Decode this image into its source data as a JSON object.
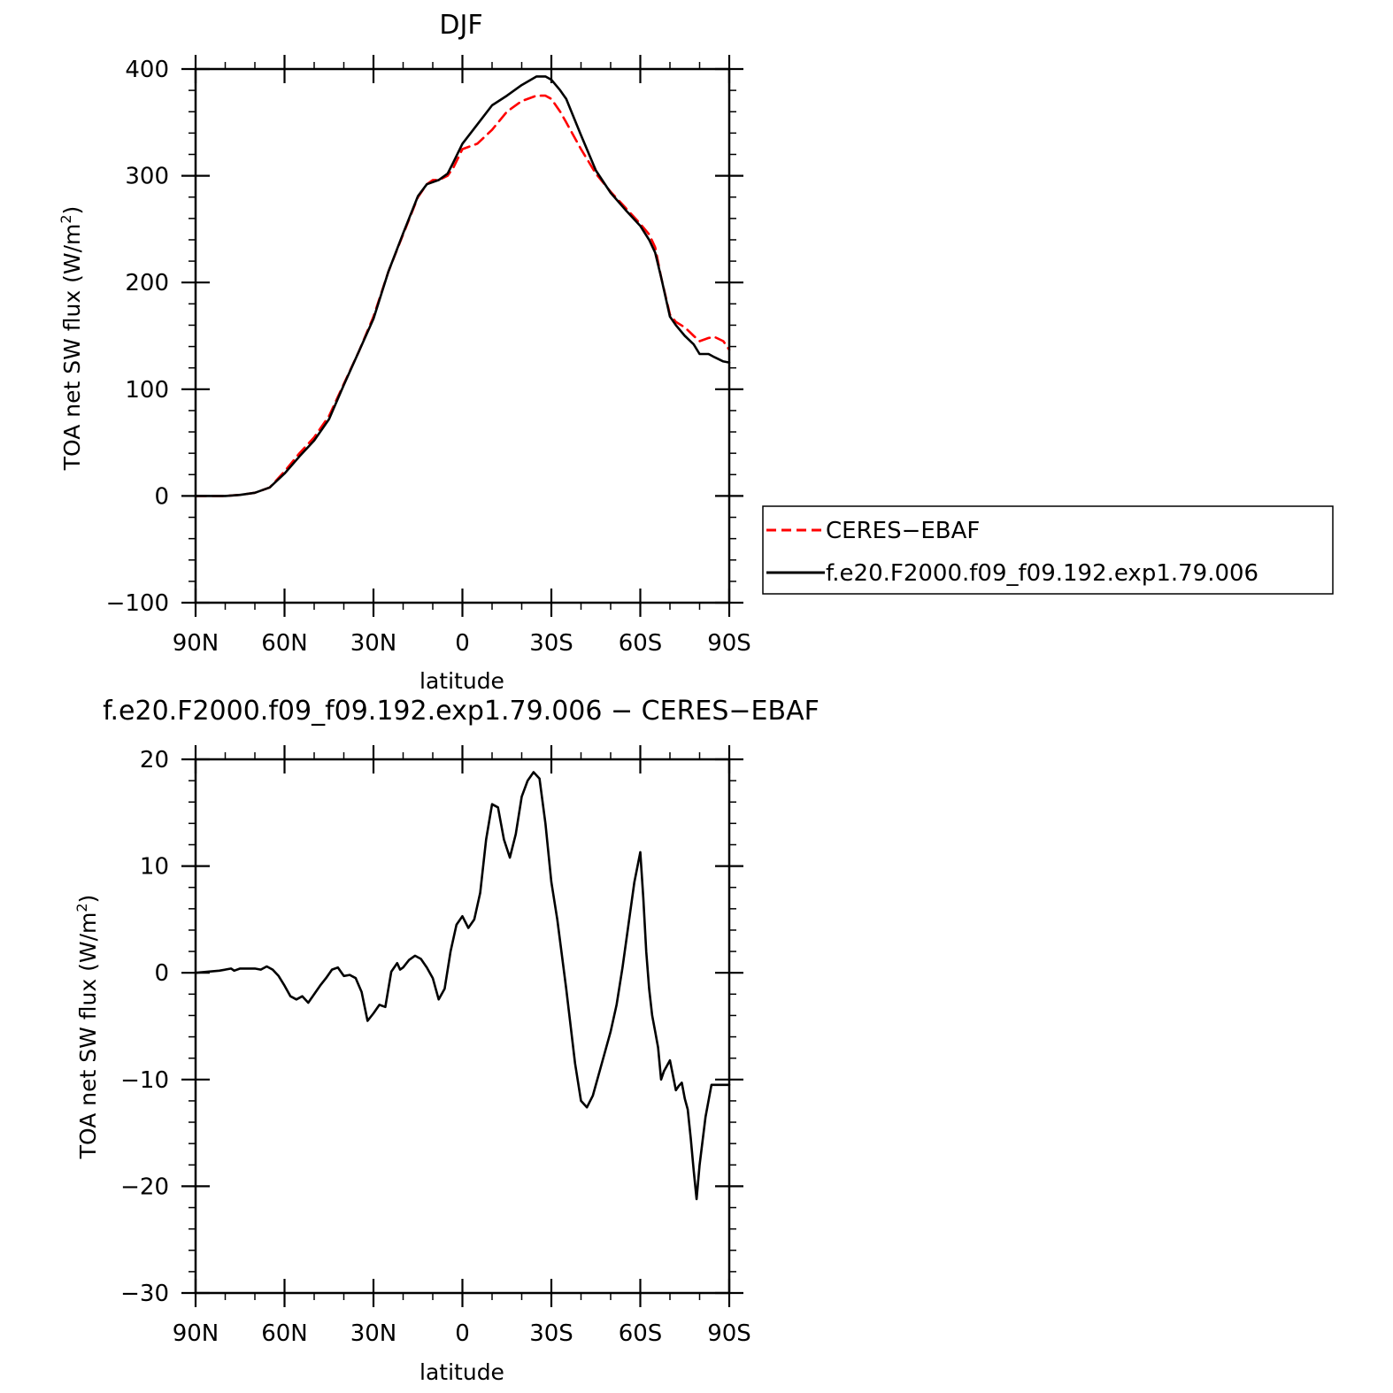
{
  "chart_data": [
    {
      "type": "line",
      "title": "DJF",
      "xlabel": "latitude",
      "ylabel_main": "TOA net SW flux (W/m",
      "ylabel_sup": "2",
      "ylabel_close": ")",
      "xlim": [
        -90,
        90
      ],
      "ylim": [
        -100,
        400
      ],
      "x_ticks": [
        -90,
        -60,
        -30,
        0,
        30,
        60,
        90
      ],
      "x_tick_labels": [
        "90N",
        "60N",
        "30N",
        "0",
        "30S",
        "60S",
        "90S"
      ],
      "y_ticks": [
        -100,
        0,
        100,
        200,
        300,
        400
      ],
      "y_tick_labels": [
        "−100",
        "0",
        "100",
        "200",
        "300",
        "400"
      ],
      "grid": false,
      "legend_position": "right",
      "series": [
        {
          "name": "CERES−EBAF",
          "color": "#ff0000",
          "dash": "dashed",
          "x": [
            -90,
            -85,
            -80,
            -75,
            -70,
            -65,
            -60,
            -55,
            -50,
            -45,
            -40,
            -35,
            -30,
            -25,
            -20,
            -15,
            -12,
            -10,
            -8,
            -5,
            -3,
            0,
            5,
            10,
            15,
            20,
            25,
            28,
            30,
            33,
            35,
            40,
            45,
            50,
            55,
            60,
            63,
            65,
            67,
            70,
            72,
            75,
            78,
            80,
            83,
            85,
            88,
            90
          ],
          "values": [
            0,
            0,
            0,
            1,
            3,
            8,
            23,
            40,
            55,
            75,
            105,
            135,
            168,
            210,
            245,
            280,
            292,
            296,
            296,
            300,
            308,
            325,
            330,
            343,
            360,
            370,
            375,
            375,
            372,
            360,
            350,
            325,
            302,
            285,
            270,
            255,
            245,
            233,
            205,
            170,
            163,
            158,
            150,
            145,
            148,
            149,
            145,
            137
          ]
        },
        {
          "name": "f.e20.F2000.f09_f09.192.exp1.79.006",
          "color": "#000000",
          "dash": "solid",
          "x": [
            -90,
            -85,
            -80,
            -75,
            -70,
            -65,
            -60,
            -55,
            -50,
            -45,
            -40,
            -35,
            -30,
            -25,
            -20,
            -15,
            -12,
            -10,
            -8,
            -5,
            -3,
            0,
            5,
            10,
            15,
            20,
            25,
            28,
            30,
            33,
            35,
            40,
            45,
            50,
            55,
            60,
            63,
            65,
            67,
            70,
            72,
            75,
            78,
            80,
            83,
            85,
            88,
            90
          ],
          "values": [
            0,
            0,
            0,
            1,
            3,
            8,
            21,
            37,
            52,
            72,
            104,
            135,
            166,
            210,
            246,
            281,
            292,
            294,
            296,
            302,
            313,
            330,
            348,
            366,
            375,
            385,
            393,
            393,
            390,
            380,
            372,
            338,
            305,
            284,
            268,
            253,
            240,
            228,
            205,
            168,
            160,
            150,
            142,
            133,
            133,
            130,
            126,
            125
          ]
        }
      ],
      "legend": [
        {
          "label": "CERES−EBAF",
          "color": "#ff0000",
          "dash": "dashed"
        },
        {
          "label": "f.e20.F2000.f09_f09.192.exp1.79.006",
          "color": "#000000",
          "dash": "solid"
        }
      ]
    },
    {
      "type": "line",
      "title": "f.e20.F2000.f09_f09.192.exp1.79.006 − CERES−EBAF",
      "xlabel": "latitude",
      "ylabel_main": "TOA net SW flux (W/m",
      "ylabel_sup": "2",
      "ylabel_close": ")",
      "xlim": [
        -90,
        90
      ],
      "ylim": [
        -30,
        20
      ],
      "x_ticks": [
        -90,
        -60,
        -30,
        0,
        30,
        60,
        90
      ],
      "x_tick_labels": [
        "90N",
        "60N",
        "30N",
        "0",
        "30S",
        "60S",
        "90S"
      ],
      "y_ticks": [
        -30,
        -20,
        -10,
        0,
        10,
        20
      ],
      "y_tick_labels": [
        "−30",
        "−20",
        "−10",
        "0",
        "10",
        "20"
      ],
      "grid": false,
      "series": [
        {
          "name": "f.e20.F2000.f09_f09.192.exp1.79.006 − CERES−EBAF",
          "color": "#000000",
          "dash": "solid",
          "x": [
            -90,
            -82,
            -78,
            -77,
            -75,
            -70,
            -68,
            -66,
            -64,
            -62,
            -60,
            -58,
            -56,
            -54,
            -52,
            -48,
            -46,
            -44,
            -42,
            -40,
            -38,
            -36,
            -34,
            -32,
            -30,
            -28,
            -26,
            -24,
            -22,
            -21,
            -20,
            -18,
            -16,
            -14,
            -12,
            -10,
            -8,
            -6,
            -4,
            -2,
            0,
            2,
            4,
            6,
            8,
            10,
            12,
            14,
            16,
            18,
            20,
            22,
            24,
            26,
            28,
            30,
            32,
            35,
            38,
            40,
            42,
            44,
            46,
            48,
            50,
            52,
            54,
            56,
            58,
            60,
            61,
            62,
            63,
            64,
            65,
            66,
            67,
            68,
            70,
            72,
            73,
            74,
            75,
            76,
            77,
            78,
            79,
            80,
            82,
            84,
            86,
            87,
            88,
            89,
            90
          ],
          "values": [
            0,
            0.2,
            0.4,
            0.2,
            0.4,
            0.4,
            0.3,
            0.6,
            0.3,
            -0.3,
            -1.2,
            -2.2,
            -2.5,
            -2.2,
            -2.8,
            -1.2,
            -0.5,
            0.3,
            0.5,
            -0.3,
            -0.2,
            -0.5,
            -1.8,
            -4.5,
            -3.8,
            -3.0,
            -3.2,
            0.1,
            0.9,
            0.3,
            0.5,
            1.2,
            1.6,
            1.3,
            0.5,
            -0.5,
            -2.5,
            -1.5,
            2.0,
            4.5,
            5.3,
            4.2,
            5.0,
            7.5,
            12.5,
            15.8,
            15.5,
            12.5,
            10.8,
            13.0,
            16.5,
            18.0,
            18.8,
            18.2,
            14.0,
            8.5,
            5.0,
            -1.5,
            -8.5,
            -12.0,
            -12.6,
            -11.5,
            -9.5,
            -7.5,
            -5.5,
            -3.0,
            0.5,
            4.5,
            8.5,
            11.3,
            7.0,
            2.0,
            -1.5,
            -4.0,
            -5.5,
            -7.0,
            -10.0,
            -9.2,
            -8.2,
            -11.0,
            -10.6,
            -10.3,
            -11.8,
            -12.8,
            -15.5,
            -18.5,
            -21.2,
            -18.0,
            -13.5,
            -10.5,
            -10.5,
            -10.5,
            -10.5,
            -10.5,
            -10.5
          ]
        }
      ]
    }
  ]
}
